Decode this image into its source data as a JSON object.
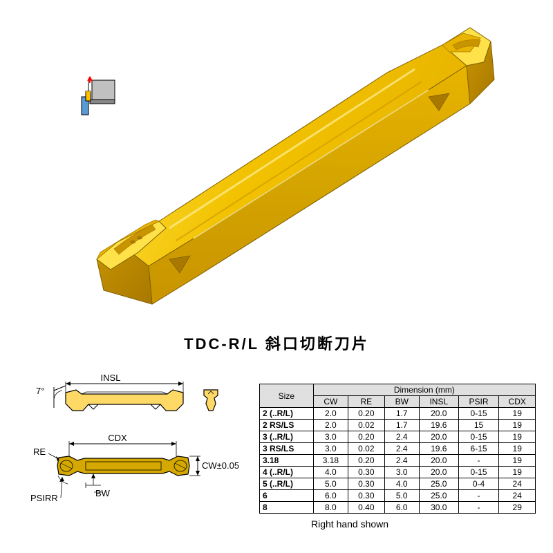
{
  "title": "TDC-R/L 斜口切断刀片",
  "right_hand_note": "Right hand shown",
  "insert_colors": {
    "main": "#f2c200",
    "highlight": "#ffe24a",
    "mid": "#e8b400",
    "shadow": "#c89400",
    "dark": "#a87800",
    "edge": "#806000"
  },
  "small_icon": {
    "border": "#000000",
    "gray": "#c0c0c0",
    "dark_gray": "#888888",
    "blue": "#5b9bd5",
    "yellow": "#ffc000",
    "red": "#ff0000"
  },
  "tech_drawing": {
    "line_color": "#000000",
    "fill_yellow": "#ffd966",
    "fill_gold": "#d4a800",
    "labels": {
      "angle": "7°",
      "insl": "INSL",
      "cdx": "CDX",
      "re": "RE",
      "cw": "CW±0.05",
      "psirr": "PSIRR",
      "bw": "BW"
    }
  },
  "table": {
    "header_group": "Dimension (mm)",
    "size_label": "Size",
    "columns": [
      "CW",
      "RE",
      "BW",
      "INSL",
      "PSIR",
      "CDX"
    ],
    "column_widths": [
      "70px",
      "50px",
      "50px",
      "50px",
      "55px",
      "55px",
      "50px"
    ],
    "rows": [
      {
        "size": "2 (..R/L)",
        "cw": "2.0",
        "re": "0.20",
        "bw": "1.7",
        "insl": "20.0",
        "psir": "0-15",
        "cdx": "19"
      },
      {
        "size": "2 RS/LS",
        "cw": "2.0",
        "re": "0.02",
        "bw": "1.7",
        "insl": "19.6",
        "psir": "15",
        "cdx": "19"
      },
      {
        "size": "3 (..R/L)",
        "cw": "3.0",
        "re": "0.20",
        "bw": "2.4",
        "insl": "20.0",
        "psir": "0-15",
        "cdx": "19"
      },
      {
        "size": "3 RS/LS",
        "cw": "3.0",
        "re": "0.02",
        "bw": "2.4",
        "insl": "19.6",
        "psir": "6-15",
        "cdx": "19"
      },
      {
        "size": "3.18",
        "cw": "3.18",
        "re": "0.20",
        "bw": "2.4",
        "insl": "20.0",
        "psir": "-",
        "cdx": "19"
      },
      {
        "size": "4 (..R/L)",
        "cw": "4.0",
        "re": "0.30",
        "bw": "3.0",
        "insl": "20.0",
        "psir": "0-15",
        "cdx": "19"
      },
      {
        "size": "5 (..R/L)",
        "cw": "5.0",
        "re": "0.30",
        "bw": "4.0",
        "insl": "25.0",
        "psir": "0-4",
        "cdx": "24"
      },
      {
        "size": "6",
        "cw": "6.0",
        "re": "0.30",
        "bw": "5.0",
        "insl": "25.0",
        "psir": "-",
        "cdx": "24"
      },
      {
        "size": "8",
        "cw": "8.0",
        "re": "0.40",
        "bw": "6.0",
        "insl": "30.0",
        "psir": "-",
        "cdx": "29"
      }
    ]
  }
}
